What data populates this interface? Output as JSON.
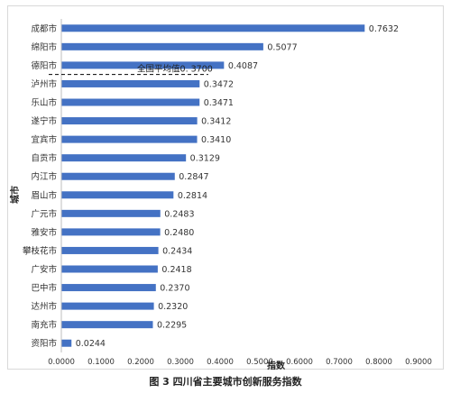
{
  "caption": "图 3 四川省主要城市创新服务指数",
  "chart_data": {
    "type": "bar",
    "orientation": "horizontal",
    "categories": [
      "成都市",
      "绵阳市",
      "德阳市",
      "泸州市",
      "乐山市",
      "遂宁市",
      "宜宾市",
      "自贡市",
      "内江市",
      "眉山市",
      "广元市",
      "雅安市",
      "攀枝花市",
      "广安市",
      "巴中市",
      "达州市",
      "南充市",
      "资阳市"
    ],
    "values": [
      0.7632,
      0.5077,
      0.4087,
      0.3472,
      0.3471,
      0.3412,
      0.341,
      0.3129,
      0.2847,
      0.2814,
      0.2483,
      0.248,
      0.2434,
      0.2418,
      0.237,
      0.232,
      0.2295,
      0.0244
    ],
    "value_labels": [
      "0.7632",
      "0.5077",
      "0.4087",
      "0.3472",
      "0.3471",
      "0.3412",
      "0.3410",
      "0.3129",
      "0.2847",
      "0.2814",
      "0.2483",
      "0.2480",
      "0.2434",
      "0.2418",
      "0.2370",
      "0.2320",
      "0.2295",
      "0.0244"
    ],
    "xlabel": "指数",
    "ylabel": "城市",
    "xlim": [
      0,
      0.9
    ],
    "x_ticks": [
      "0.0000",
      "0.1000",
      "0.2000",
      "0.3000",
      "0.4000",
      "0.5000",
      "0.6000",
      "0.7000",
      "0.8000",
      "0.9000"
    ],
    "reference_line": {
      "value": 0.37,
      "label": "全国平均值0. 3700",
      "style": "dashed",
      "color": "#000000"
    },
    "bar_color": "#4472C4",
    "grid": false
  }
}
